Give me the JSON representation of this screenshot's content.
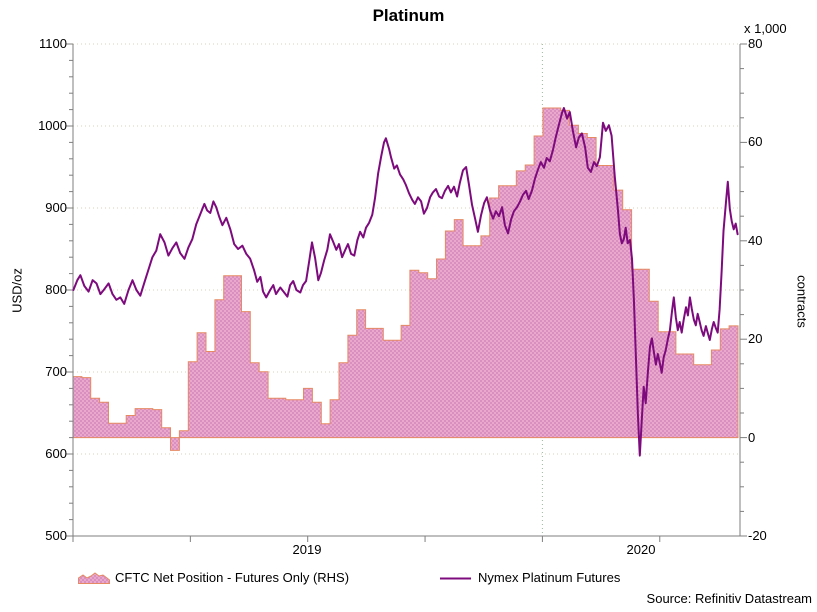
{
  "title": "Platinum",
  "right_axis_multiplier": "x 1,000",
  "left_axis_title": "USD/oz",
  "right_axis_title": "contracts",
  "x_labels": [
    {
      "label": "2019",
      "center_month": 6
    },
    {
      "label": "2020",
      "center_month": 14.5
    }
  ],
  "legend": [
    {
      "label": "CFTC Net Position - Futures Only (RHS)"
    },
    {
      "label": "Nymex Platinum Futures"
    }
  ],
  "source": "Source: Refinitiv Datastream",
  "colors": {
    "line_purple": "#7d0b7d",
    "area_pink_base": "#eba8cd",
    "area_pink_dot": "#d98fc0",
    "area_outline": "#e58a63",
    "gridline": "#d8d2bc",
    "year_line": "#9eb99e",
    "axis": "#7f7f7f",
    "text": "#000000"
  },
  "chart_data": {
    "type": "line+area",
    "title": "Platinum",
    "x_unit": "months since Jan 2019",
    "x_domain": [
      0,
      17
    ],
    "x_ticks_months": [
      0,
      3,
      6,
      9,
      12,
      15
    ],
    "year_boundary_month": 12,
    "grid": "horizontal-dotted",
    "left_axis": {
      "label": "USD/oz",
      "min": 500,
      "max": 1100,
      "tick_step": 100,
      "minor_step": 20,
      "ticks": [
        500,
        600,
        700,
        800,
        900,
        1000,
        1100
      ]
    },
    "right_axis": {
      "label": "contracts",
      "unit": "x 1,000",
      "min": -20,
      "max": 80,
      "tick_step": 20,
      "minor_step": 5,
      "ticks": [
        -20,
        0,
        20,
        40,
        60,
        80
      ]
    },
    "series": [
      {
        "name": "CFTC Net Position - Futures Only (RHS)",
        "type": "area-steps",
        "axis": "right",
        "unit": "thousand contracts",
        "step_months": 0.226667,
        "values": [
          12.4,
          12.2,
          8.0,
          7.2,
          2.9,
          2.9,
          4.5,
          5.9,
          5.9,
          5.7,
          2.0,
          -2.6,
          1.4,
          15.4,
          21.3,
          17.5,
          28.0,
          32.9,
          32.9,
          25.6,
          15.2,
          13.4,
          8.0,
          8.0,
          7.7,
          7.7,
          10.0,
          7.2,
          2.8,
          7.7,
          15.2,
          20.8,
          26.0,
          22.2,
          22.2,
          19.8,
          19.8,
          22.8,
          34.0,
          33.5,
          32.3,
          36.3,
          42.0,
          44.3,
          39.0,
          39.0,
          41.0,
          48.7,
          51.2,
          51.2,
          54.2,
          55.4,
          61.3,
          67.0,
          67.0,
          66.5,
          63.5,
          61.8,
          61.0,
          55.3,
          55.3,
          50.3,
          46.3,
          34.2,
          34.2,
          27.7,
          21.5,
          21.5,
          17.0,
          17.0,
          14.8,
          14.8,
          17.8,
          22.1,
          22.7
        ]
      },
      {
        "name": "Nymex Platinum Futures",
        "type": "line",
        "axis": "left",
        "unit": "USD/oz",
        "points": [
          [
            0.01,
            800
          ],
          [
            0.11,
            812
          ],
          [
            0.19,
            818
          ],
          [
            0.29,
            805
          ],
          [
            0.4,
            798
          ],
          [
            0.5,
            812
          ],
          [
            0.6,
            808
          ],
          [
            0.7,
            795
          ],
          [
            0.8,
            801
          ],
          [
            0.91,
            808
          ],
          [
            1.01,
            795
          ],
          [
            1.11,
            788
          ],
          [
            1.21,
            791
          ],
          [
            1.31,
            783
          ],
          [
            1.42,
            800
          ],
          [
            1.52,
            812
          ],
          [
            1.62,
            800
          ],
          [
            1.72,
            793
          ],
          [
            1.83,
            810
          ],
          [
            1.93,
            825
          ],
          [
            2.03,
            840
          ],
          [
            2.13,
            848
          ],
          [
            2.23,
            868
          ],
          [
            2.34,
            858
          ],
          [
            2.44,
            842
          ],
          [
            2.54,
            851
          ],
          [
            2.64,
            858
          ],
          [
            2.74,
            845
          ],
          [
            2.85,
            838
          ],
          [
            2.95,
            852
          ],
          [
            3.05,
            862
          ],
          [
            3.15,
            880
          ],
          [
            3.25,
            892
          ],
          [
            3.36,
            905
          ],
          [
            3.43,
            897
          ],
          [
            3.51,
            894
          ],
          [
            3.59,
            908
          ],
          [
            3.66,
            901
          ],
          [
            3.74,
            889
          ],
          [
            3.82,
            879
          ],
          [
            3.92,
            888
          ],
          [
            4.02,
            874
          ],
          [
            4.12,
            856
          ],
          [
            4.22,
            850
          ],
          [
            4.33,
            854
          ],
          [
            4.43,
            844
          ],
          [
            4.53,
            838
          ],
          [
            4.63,
            824
          ],
          [
            4.71,
            810
          ],
          [
            4.79,
            816
          ],
          [
            4.86,
            798
          ],
          [
            4.94,
            791
          ],
          [
            5.04,
            800
          ],
          [
            5.12,
            806
          ],
          [
            5.19,
            795
          ],
          [
            5.3,
            803
          ],
          [
            5.4,
            797
          ],
          [
            5.48,
            792
          ],
          [
            5.55,
            806
          ],
          [
            5.63,
            811
          ],
          [
            5.71,
            800
          ],
          [
            5.81,
            797
          ],
          [
            5.88,
            806
          ],
          [
            5.96,
            811
          ],
          [
            6.04,
            836
          ],
          [
            6.11,
            858
          ],
          [
            6.19,
            839
          ],
          [
            6.27,
            812
          ],
          [
            6.34,
            821
          ],
          [
            6.42,
            836
          ],
          [
            6.5,
            849
          ],
          [
            6.57,
            868
          ],
          [
            6.65,
            859
          ],
          [
            6.73,
            849
          ],
          [
            6.8,
            856
          ],
          [
            6.88,
            840
          ],
          [
            6.96,
            849
          ],
          [
            7.03,
            856
          ],
          [
            7.11,
            844
          ],
          [
            7.19,
            842
          ],
          [
            7.27,
            861
          ],
          [
            7.34,
            871
          ],
          [
            7.42,
            864
          ],
          [
            7.49,
            876
          ],
          [
            7.57,
            882
          ],
          [
            7.65,
            892
          ],
          [
            7.72,
            912
          ],
          [
            7.8,
            942
          ],
          [
            7.88,
            963
          ],
          [
            7.95,
            980
          ],
          [
            8.0,
            985
          ],
          [
            8.08,
            972
          ],
          [
            8.13,
            962
          ],
          [
            8.21,
            948
          ],
          [
            8.28,
            952
          ],
          [
            8.36,
            941
          ],
          [
            8.44,
            935
          ],
          [
            8.51,
            928
          ],
          [
            8.59,
            918
          ],
          [
            8.67,
            910
          ],
          [
            8.74,
            905
          ],
          [
            8.82,
            913
          ],
          [
            8.9,
            908
          ],
          [
            8.97,
            893
          ],
          [
            9.05,
            900
          ],
          [
            9.13,
            913
          ],
          [
            9.2,
            919
          ],
          [
            9.28,
            923
          ],
          [
            9.36,
            914
          ],
          [
            9.43,
            912
          ],
          [
            9.51,
            921
          ],
          [
            9.59,
            927
          ],
          [
            9.66,
            919
          ],
          [
            9.74,
            926
          ],
          [
            9.82,
            914
          ],
          [
            9.89,
            931
          ],
          [
            9.97,
            946
          ],
          [
            10.05,
            950
          ],
          [
            10.12,
            929
          ],
          [
            10.2,
            904
          ],
          [
            10.28,
            887
          ],
          [
            10.35,
            871
          ],
          [
            10.43,
            891
          ],
          [
            10.51,
            906
          ],
          [
            10.58,
            913
          ],
          [
            10.66,
            897
          ],
          [
            10.74,
            887
          ],
          [
            10.81,
            896
          ],
          [
            10.89,
            890
          ],
          [
            10.97,
            901
          ],
          [
            11.04,
            879
          ],
          [
            11.12,
            869
          ],
          [
            11.2,
            886
          ],
          [
            11.27,
            896
          ],
          [
            11.35,
            901
          ],
          [
            11.43,
            908
          ],
          [
            11.5,
            916
          ],
          [
            11.58,
            921
          ],
          [
            11.65,
            911
          ],
          [
            11.73,
            921
          ],
          [
            11.81,
            936
          ],
          [
            11.88,
            946
          ],
          [
            11.96,
            956
          ],
          [
            12.04,
            949
          ],
          [
            12.11,
            961
          ],
          [
            12.19,
            957
          ],
          [
            12.27,
            971
          ],
          [
            12.34,
            986
          ],
          [
            12.42,
            1001
          ],
          [
            12.5,
            1016
          ],
          [
            12.55,
            1022
          ],
          [
            12.63,
            1009
          ],
          [
            12.7,
            1017
          ],
          [
            12.78,
            994
          ],
          [
            12.86,
            974
          ],
          [
            12.93,
            986
          ],
          [
            13.01,
            991
          ],
          [
            13.09,
            974
          ],
          [
            13.16,
            949
          ],
          [
            13.24,
            944
          ],
          [
            13.32,
            956
          ],
          [
            13.39,
            951
          ],
          [
            13.47,
            962
          ],
          [
            13.55,
            1004
          ],
          [
            13.62,
            994
          ],
          [
            13.7,
            1001
          ],
          [
            13.77,
            988
          ],
          [
            13.85,
            938
          ],
          [
            13.93,
            898
          ],
          [
            13.98,
            868
          ],
          [
            14.03,
            857
          ],
          [
            14.08,
            862
          ],
          [
            14.13,
            876
          ],
          [
            14.18,
            857
          ],
          [
            14.24,
            861
          ],
          [
            14.29,
            838
          ],
          [
            14.34,
            788
          ],
          [
            14.39,
            718
          ],
          [
            14.44,
            648
          ],
          [
            14.49,
            598
          ],
          [
            14.54,
            642
          ],
          [
            14.59,
            682
          ],
          [
            14.64,
            662
          ],
          [
            14.7,
            702
          ],
          [
            14.75,
            731
          ],
          [
            14.8,
            741
          ],
          [
            14.85,
            724
          ],
          [
            14.9,
            709
          ],
          [
            14.95,
            722
          ],
          [
            15.0,
            711
          ],
          [
            15.05,
            699
          ],
          [
            15.1,
            718
          ],
          [
            15.15,
            726
          ],
          [
            15.21,
            741
          ],
          [
            15.26,
            751
          ],
          [
            15.31,
            773
          ],
          [
            15.36,
            791
          ],
          [
            15.41,
            767
          ],
          [
            15.46,
            751
          ],
          [
            15.51,
            761
          ],
          [
            15.56,
            748
          ],
          [
            15.61,
            763
          ],
          [
            15.67,
            779
          ],
          [
            15.72,
            769
          ],
          [
            15.77,
            791
          ],
          [
            15.82,
            777
          ],
          [
            15.87,
            764
          ],
          [
            15.92,
            757
          ],
          [
            15.97,
            771
          ],
          [
            16.02,
            761
          ],
          [
            16.07,
            751
          ],
          [
            16.12,
            744
          ],
          [
            16.18,
            756
          ],
          [
            16.23,
            747
          ],
          [
            16.28,
            739
          ],
          [
            16.33,
            752
          ],
          [
            16.38,
            761
          ],
          [
            16.43,
            754
          ],
          [
            16.48,
            748
          ],
          [
            16.53,
            776
          ],
          [
            16.58,
            822
          ],
          [
            16.63,
            872
          ],
          [
            16.69,
            906
          ],
          [
            16.74,
            932
          ],
          [
            16.79,
            899
          ],
          [
            16.84,
            884
          ],
          [
            16.89,
            874
          ],
          [
            16.94,
            881
          ],
          [
            16.99,
            868
          ]
        ]
      }
    ]
  }
}
